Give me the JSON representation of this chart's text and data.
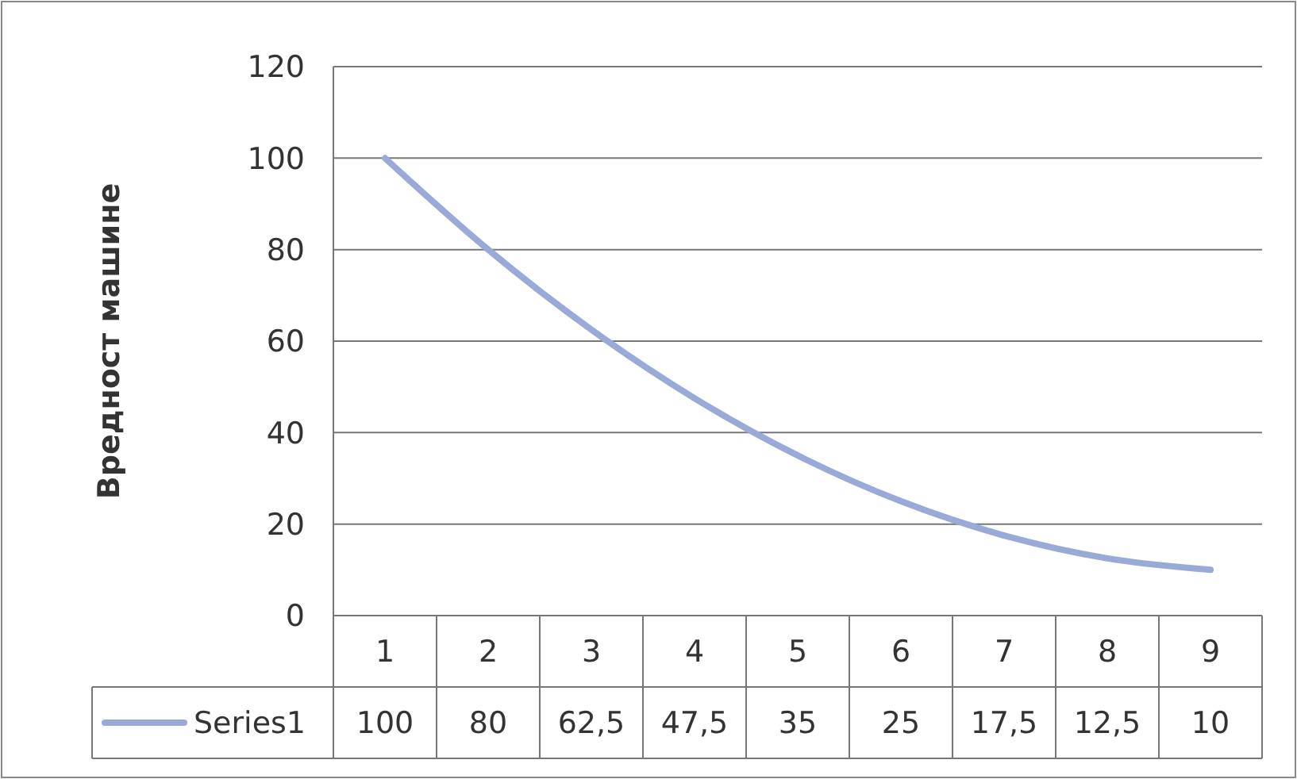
{
  "chart_data": {
    "type": "line",
    "ylabel": "Вредност машине",
    "categories": [
      "1",
      "2",
      "3",
      "4",
      "5",
      "6",
      "7",
      "8",
      "9"
    ],
    "series": [
      {
        "name": "Series1",
        "color": "#9aaad8",
        "values": [
          100,
          80,
          62.5,
          47.5,
          35,
          25,
          17.5,
          12.5,
          10
        ],
        "value_labels": [
          "100",
          "80",
          "62,5",
          "47,5",
          "35",
          "25",
          "17,5",
          "12,5",
          "10"
        ]
      }
    ],
    "ylim": [
      0,
      120
    ],
    "yticks": [
      0,
      20,
      40,
      60,
      80,
      100,
      120
    ],
    "grid": "y",
    "legend": "bottom",
    "marker": "none",
    "line_style": "solid"
  }
}
